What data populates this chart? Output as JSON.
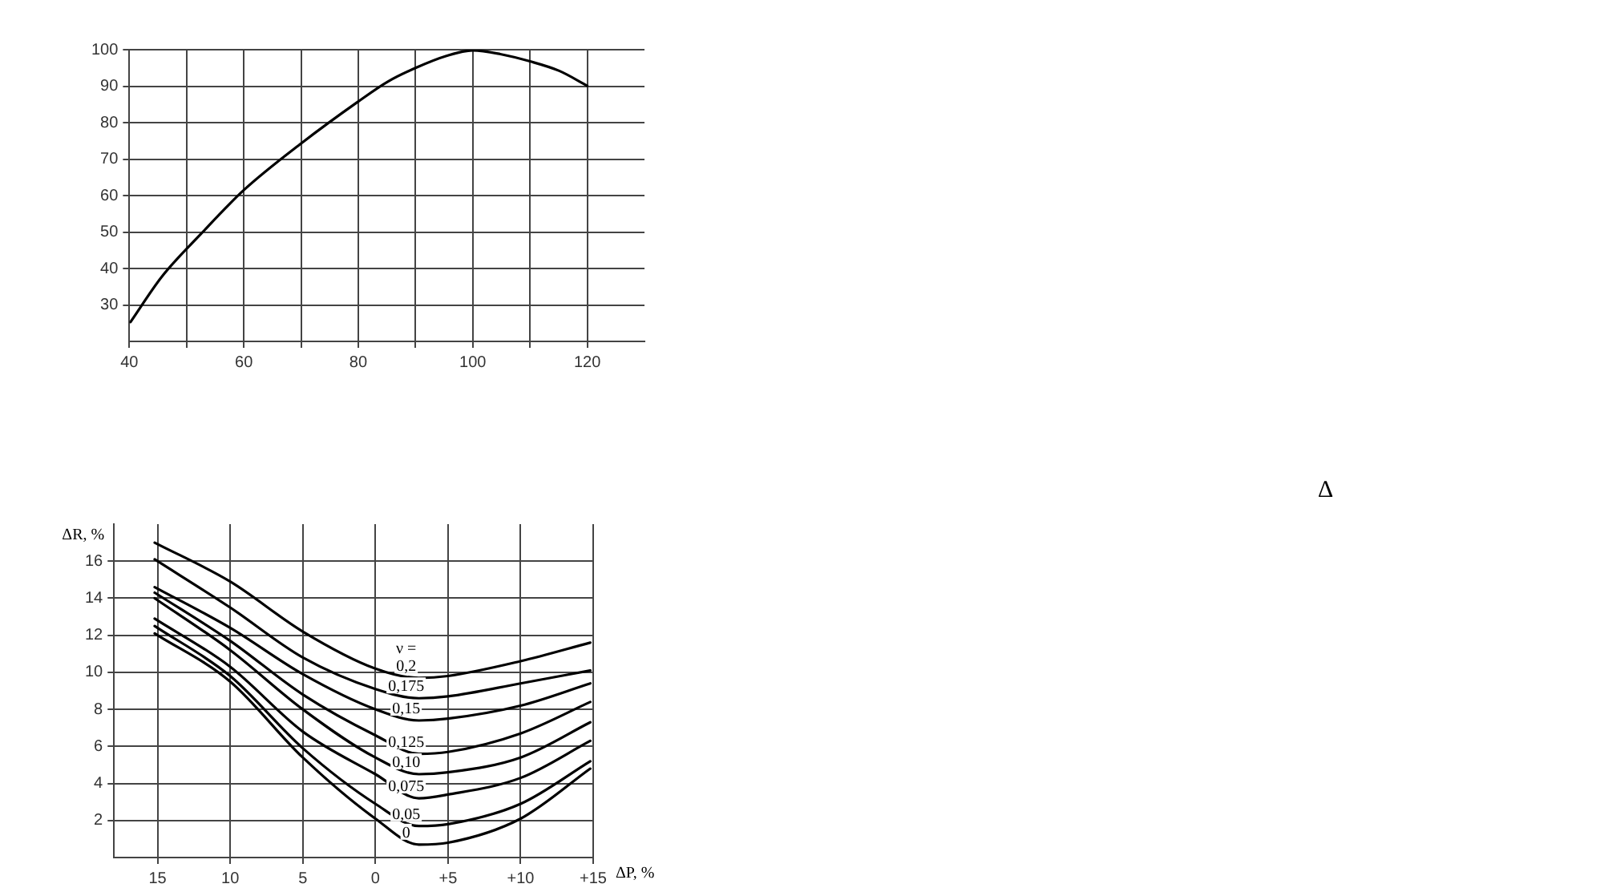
{
  "chart_data": [
    {
      "type": "line",
      "x": [
        40.2,
        45.7,
        52.4,
        60,
        70.1,
        80,
        85.1,
        90,
        95.4,
        100,
        104.8,
        110,
        115.1,
        120
      ],
      "series": [
        {
          "color": "#000000",
          "values": [
            25.3,
            37.8,
            49.3,
            61.5,
            74.4,
            85.8,
            91.2,
            95,
            98.3,
            99.8,
            98.8,
            96.8,
            94.2,
            90.1
          ]
        }
      ],
      "xlim": [
        40,
        130
      ],
      "xticks": [
        40,
        {
          "value": 50,
          "label": null
        },
        60,
        {
          "value": 70,
          "label": null
        },
        80,
        {
          "value": 90,
          "label": null
        },
        100,
        {
          "value": 110,
          "label": null
        },
        120
      ],
      "ylim": [
        20,
        100
      ],
      "yticks": [
        30,
        40,
        50,
        60,
        70,
        80,
        90,
        100
      ],
      "grid": true,
      "marker": "none",
      "line_style": "solid"
    },
    {
      "type": "line",
      "x": [
        -15.2,
        -10,
        -5,
        0,
        3,
        5,
        10,
        14.8
      ],
      "xlabel": "ΔP, %",
      "ylabel": "ΔR, %",
      "legend_title": "ν =",
      "series": [
        {
          "name": "0,2",
          "color": "#000000",
          "values": [
            17.0,
            14.9,
            12.2,
            10.2,
            9.7,
            9.8,
            10.6,
            11.6
          ]
        },
        {
          "name": "0,175",
          "color": "#000000",
          "values": [
            16.1,
            13.5,
            10.8,
            9.1,
            8.6,
            8.7,
            9.4,
            10.1
          ]
        },
        {
          "name": "0,15",
          "color": "#000000",
          "values": [
            14.6,
            12.4,
            9.9,
            8.0,
            7.4,
            7.5,
            8.2,
            9.4
          ]
        },
        {
          "name": "0,125",
          "color": "#000000",
          "values": [
            14.3,
            11.7,
            8.8,
            6.6,
            5.6,
            5.7,
            6.7,
            8.4
          ]
        },
        {
          "name": "0,10",
          "color": "#000000",
          "values": [
            14.0,
            11.2,
            8.0,
            5.4,
            4.5,
            4.6,
            5.4,
            7.3
          ]
        },
        {
          "name": "0,075",
          "color": "#000000",
          "values": [
            12.9,
            10.3,
            6.8,
            4.5,
            3.2,
            3.4,
            4.3,
            6.3
          ]
        },
        {
          "name": "0,05",
          "color": "#000000",
          "values": [
            12.5,
            9.8,
            5.9,
            2.9,
            1.7,
            1.8,
            2.9,
            5.2
          ]
        },
        {
          "name": "0",
          "color": "#000000",
          "values": [
            12.1,
            9.5,
            5.4,
            2.1,
            0.7,
            0.8,
            2.1,
            4.8
          ]
        }
      ],
      "xlim": [
        -18,
        15
      ],
      "xticks": [
        {
          "value": -15,
          "label": "15"
        },
        {
          "value": -10,
          "label": "10"
        },
        {
          "value": -5,
          "label": "5"
        },
        0,
        {
          "value": 5,
          "label": "+5"
        },
        {
          "value": 10,
          "label": "+10"
        },
        {
          "value": 15,
          "label": "+15"
        }
      ],
      "ylim": [
        0,
        18
      ],
      "yticks": [
        2,
        4,
        6,
        8,
        10,
        12,
        14,
        16
      ],
      "grid": true,
      "marker": "none",
      "line_style": "solid",
      "annotations": [
        "Δ"
      ]
    }
  ]
}
